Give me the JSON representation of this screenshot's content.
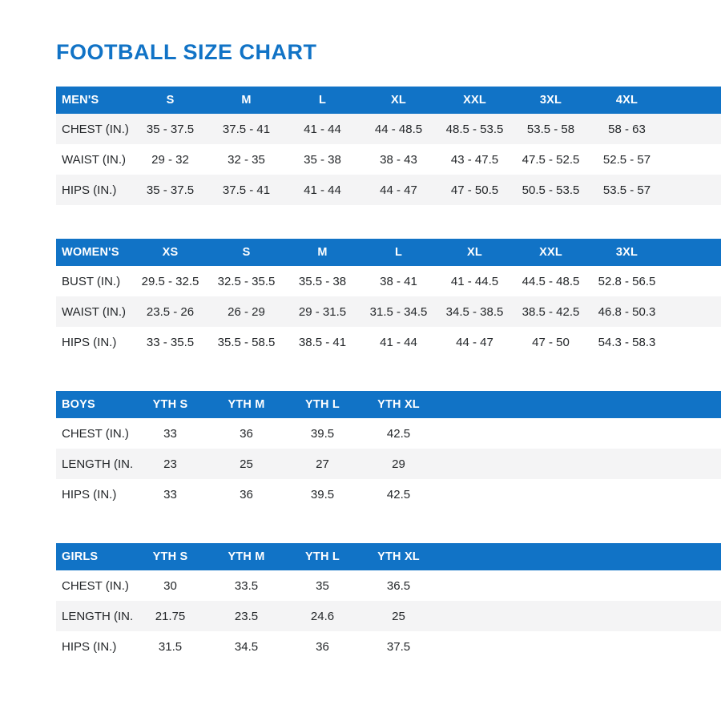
{
  "page": {
    "title": "FOOTBALL SIZE CHART"
  },
  "colors": {
    "accent_blue": "#1173c6",
    "header_text": "#ffffff",
    "stripe_gray": "#f4f4f5",
    "cell_text": "#232629"
  },
  "chart_data": [
    {
      "type": "table",
      "name": "mens",
      "header": [
        "MEN'S",
        "S",
        "M",
        "L",
        "XL",
        "XXL",
        "3XL",
        "4XL"
      ],
      "rows": [
        {
          "label": "CHEST (IN.)",
          "striped": true,
          "values": [
            "35 - 37.5",
            "37.5 - 41",
            "41 - 44",
            "44 - 48.5",
            "48.5 - 53.5",
            "53.5 - 58",
            "58 - 63"
          ]
        },
        {
          "label": "WAIST (IN.)",
          "striped": false,
          "values": [
            "29 - 32",
            "32 - 35",
            "35 - 38",
            "38 - 43",
            "43 - 47.5",
            "47.5 - 52.5",
            "52.5 - 57"
          ]
        },
        {
          "label": "HIPS (IN.)",
          "striped": true,
          "values": [
            "35 - 37.5",
            "37.5 - 41",
            "41 - 44",
            "44 - 47",
            "47 - 50.5",
            "50.5 - 53.5",
            "53.5 - 57"
          ]
        }
      ]
    },
    {
      "type": "table",
      "name": "womens",
      "header": [
        "WOMEN'S",
        "XS",
        "S",
        "M",
        "L",
        "XL",
        "XXL",
        "3XL"
      ],
      "rows": [
        {
          "label": "BUST (IN.)",
          "striped": false,
          "values": [
            "29.5 - 32.5",
            "32.5 - 35.5",
            "35.5 - 38",
            "38 - 41",
            "41 - 44.5",
            "44.5 - 48.5",
            "52.8 - 56.5"
          ]
        },
        {
          "label": "WAIST (IN.)",
          "striped": true,
          "values": [
            "23.5 - 26",
            "26 - 29",
            "29 - 31.5",
            "31.5 - 34.5",
            "34.5 - 38.5",
            "38.5 - 42.5",
            "46.8 - 50.3"
          ]
        },
        {
          "label": "HIPS (IN.)",
          "striped": false,
          "values": [
            "33 - 35.5",
            "35.5 - 58.5",
            "38.5 - 41",
            "41 - 44",
            "44 - 47",
            "47 - 50",
            "54.3 - 58.3"
          ]
        }
      ]
    },
    {
      "type": "table",
      "name": "boys",
      "header": [
        "BOYS",
        "YTH S",
        "YTH M",
        "YTH L",
        "YTH XL"
      ],
      "rows": [
        {
          "label": "CHEST (IN.)",
          "striped": false,
          "values": [
            "33",
            "36",
            "39.5",
            "42.5"
          ]
        },
        {
          "label": "LENGTH (IN.)",
          "striped": true,
          "values": [
            "23",
            "25",
            "27",
            "29"
          ]
        },
        {
          "label": "HIPS (IN.)",
          "striped": false,
          "values": [
            "33",
            "36",
            "39.5",
            "42.5"
          ]
        }
      ]
    },
    {
      "type": "table",
      "name": "girls",
      "header": [
        "GIRLS",
        "YTH S",
        "YTH M",
        "YTH L",
        "YTH XL"
      ],
      "rows": [
        {
          "label": "CHEST (IN.)",
          "striped": false,
          "values": [
            "30",
            "33.5",
            "35",
            "36.5"
          ]
        },
        {
          "label": "LENGTH (IN.)",
          "striped": true,
          "values": [
            "21.75",
            "23.5",
            "24.6",
            "25"
          ]
        },
        {
          "label": "HIPS (IN.)",
          "striped": false,
          "values": [
            "31.5",
            "34.5",
            "36",
            "37.5"
          ]
        }
      ]
    }
  ]
}
